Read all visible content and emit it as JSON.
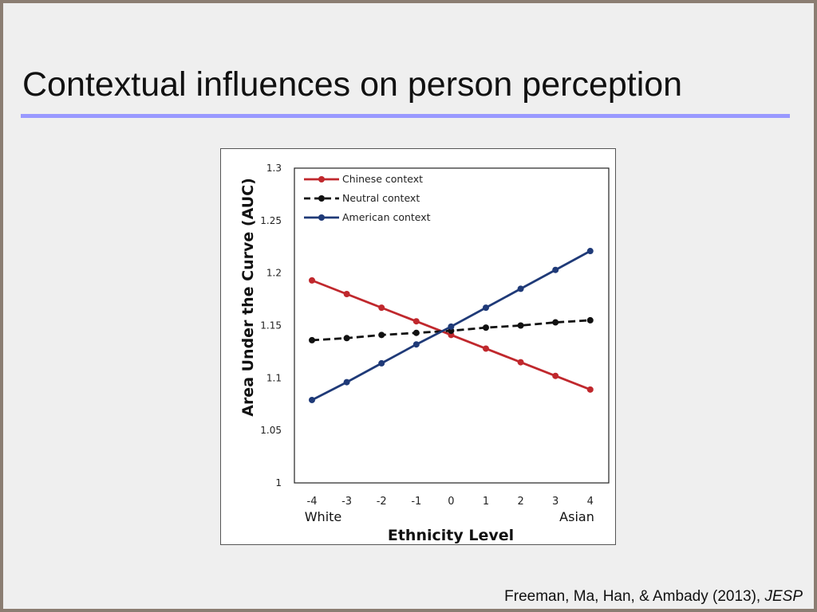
{
  "slide": {
    "title": "Contextual influences on person perception",
    "citation": "Freeman, Ma, Han, & Ambady (2013), ",
    "citation_journal": "JESP"
  },
  "colors": {
    "background": "#efefef",
    "frame": "#8b7d72",
    "title_rule": "#9999ff"
  },
  "chart_data": {
    "type": "line",
    "x": [
      -4,
      -3,
      -2,
      -1,
      0,
      1,
      2,
      3,
      4
    ],
    "x_tick_labels": [
      "-4",
      "-3",
      "-2",
      "-1",
      "0",
      "1",
      "2",
      "3",
      "4"
    ],
    "x_end_labels": {
      "left": "White",
      "right": "Asian"
    },
    "xlabel": "Ethnicity Level",
    "ylabel": "Area Under the Curve (AUC)",
    "ylim": [
      1,
      1.3
    ],
    "y_ticks": [
      1,
      1.05,
      1.1,
      1.15,
      1.2,
      1.25,
      1.3
    ],
    "y_tick_labels": [
      "1",
      "1.05",
      "1.1",
      "1.15",
      "1.2",
      "1.25",
      "1.3"
    ],
    "grid": false,
    "legend_position": "top-left",
    "series": [
      {
        "name": "Chinese context",
        "color": "#c0282d",
        "dashed": false,
        "values": [
          1.193,
          1.18,
          1.167,
          1.154,
          1.141,
          1.128,
          1.115,
          1.102,
          1.089
        ]
      },
      {
        "name": "Neutral context",
        "color": "#111111",
        "dashed": true,
        "values": [
          1.136,
          1.138,
          1.141,
          1.143,
          1.145,
          1.148,
          1.15,
          1.153,
          1.155
        ]
      },
      {
        "name": "American context",
        "color": "#1f3a78",
        "dashed": false,
        "values": [
          1.079,
          1.096,
          1.114,
          1.132,
          1.149,
          1.167,
          1.185,
          1.203,
          1.221
        ]
      }
    ]
  }
}
